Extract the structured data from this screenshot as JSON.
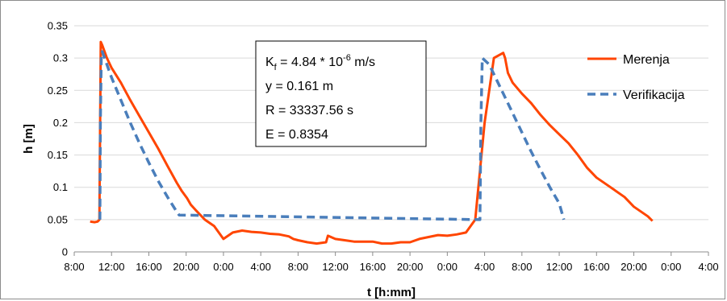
{
  "chart_data": {
    "type": "line",
    "title": "",
    "xlabel": "t [h:mm]",
    "ylabel": "h [m]",
    "x_unit": "hours elapsed since 8:00 of day 1",
    "xlim": [
      0,
      68
    ],
    "ylim": [
      0,
      0.35
    ],
    "x_ticks": [
      0,
      4,
      8,
      12,
      16,
      20,
      24,
      28,
      32,
      36,
      40,
      44,
      48,
      52,
      56,
      60,
      64,
      68
    ],
    "x_tick_labels": [
      "8:00",
      "12:00",
      "16:00",
      "20:00",
      "0:00",
      "4:00",
      "8:00",
      "12:00",
      "16:00",
      "20:00",
      "0:00",
      "4:00",
      "8:00",
      "12:00",
      "16:00",
      "20:00",
      "0:00",
      "4:00"
    ],
    "y_ticks": [
      0,
      0.05,
      0.1,
      0.15,
      0.2,
      0.25,
      0.3,
      0.35
    ],
    "y_tick_labels": [
      "0",
      "0.05",
      "0.1",
      "0.15",
      "0.2",
      "0.25",
      "0.3",
      "0.35"
    ],
    "grid": "horizontal",
    "legend_position": "top-right",
    "series": [
      {
        "name": "Merenja",
        "color": "#ff4500",
        "style": "solid",
        "x": [
          1.7,
          2.2,
          2.5,
          2.7,
          2.75,
          2.85,
          3.0,
          3.5,
          4.0,
          5.0,
          6.0,
          7.0,
          8.0,
          9.0,
          10.0,
          11.0,
          11.5,
          12.1,
          12.5,
          13.0,
          14.0,
          15.0,
          16.0,
          17.0,
          18.0,
          19.0,
          20.0,
          21.0,
          22.0,
          23.0,
          23.5,
          24.0,
          25.0,
          26.0,
          27.0,
          27.2,
          28.0,
          29.0,
          30.0,
          31.0,
          32.0,
          33.0,
          34.0,
          35.0,
          36.0,
          37.0,
          38.0,
          39.0,
          40.0,
          41.0,
          42.0,
          43.0,
          44.0,
          45.0,
          46.0,
          46.2,
          46.3,
          46.5,
          47.0,
          48.0,
          49.0,
          50.0,
          51.0,
          52.0,
          53.0,
          54.0,
          55.0,
          56.0,
          57.0,
          58.0,
          59.0,
          60.0,
          61.0,
          61.5,
          62.0
        ],
        "y": [
          0.047,
          0.046,
          0.047,
          0.05,
          0.15,
          0.325,
          0.32,
          0.3,
          0.285,
          0.262,
          0.235,
          0.21,
          0.185,
          0.16,
          0.133,
          0.107,
          0.095,
          0.083,
          0.073,
          0.065,
          0.05,
          0.04,
          0.02,
          0.03,
          0.033,
          0.031,
          0.03,
          0.028,
          0.027,
          0.024,
          0.02,
          0.018,
          0.015,
          0.013,
          0.015,
          0.025,
          0.02,
          0.018,
          0.016,
          0.016,
          0.016,
          0.013,
          0.013,
          0.015,
          0.015,
          0.02,
          0.023,
          0.026,
          0.025,
          0.027,
          0.03,
          0.05,
          0.2,
          0.3,
          0.308,
          0.3,
          0.292,
          0.277,
          0.262,
          0.245,
          0.23,
          0.212,
          0.196,
          0.182,
          0.168,
          0.15,
          0.13,
          0.115,
          0.105,
          0.095,
          0.085,
          0.07,
          0.06,
          0.055,
          0.048
        ]
      },
      {
        "name": "Verifikacija",
        "color": "#4a7ebb",
        "style": "dashed",
        "x": [
          2.75,
          2.8,
          2.9,
          3.0,
          3.5,
          4.0,
          5.0,
          6.0,
          7.0,
          8.0,
          9.0,
          10.0,
          11.0,
          11.25,
          43.5,
          43.6,
          43.75,
          44.5,
          45.0,
          46.0,
          47.0,
          48.0,
          49.0,
          50.0,
          51.0,
          52.0,
          52.5
        ],
        "y": [
          0.05,
          0.2,
          0.3,
          0.31,
          0.29,
          0.27,
          0.235,
          0.2,
          0.168,
          0.138,
          0.11,
          0.085,
          0.062,
          0.057,
          0.05,
          0.2,
          0.3,
          0.29,
          0.275,
          0.245,
          0.215,
          0.185,
          0.155,
          0.127,
          0.1,
          0.075,
          0.05
        ]
      }
    ],
    "annotation": {
      "lines": [
        {
          "main": "K",
          "sub": "f",
          "mid": " = 4.84 * 10",
          "sup": "-6",
          "tail": " m/s"
        },
        {
          "main": "y = 0.161 m",
          "sub": "",
          "mid": "",
          "sup": "",
          "tail": ""
        },
        {
          "main": "R = 33337.56 s",
          "sub": "",
          "mid": "",
          "sup": "",
          "tail": ""
        },
        {
          "main": "E = 0.8354",
          "sub": "",
          "mid": "",
          "sup": "",
          "tail": ""
        }
      ]
    }
  }
}
